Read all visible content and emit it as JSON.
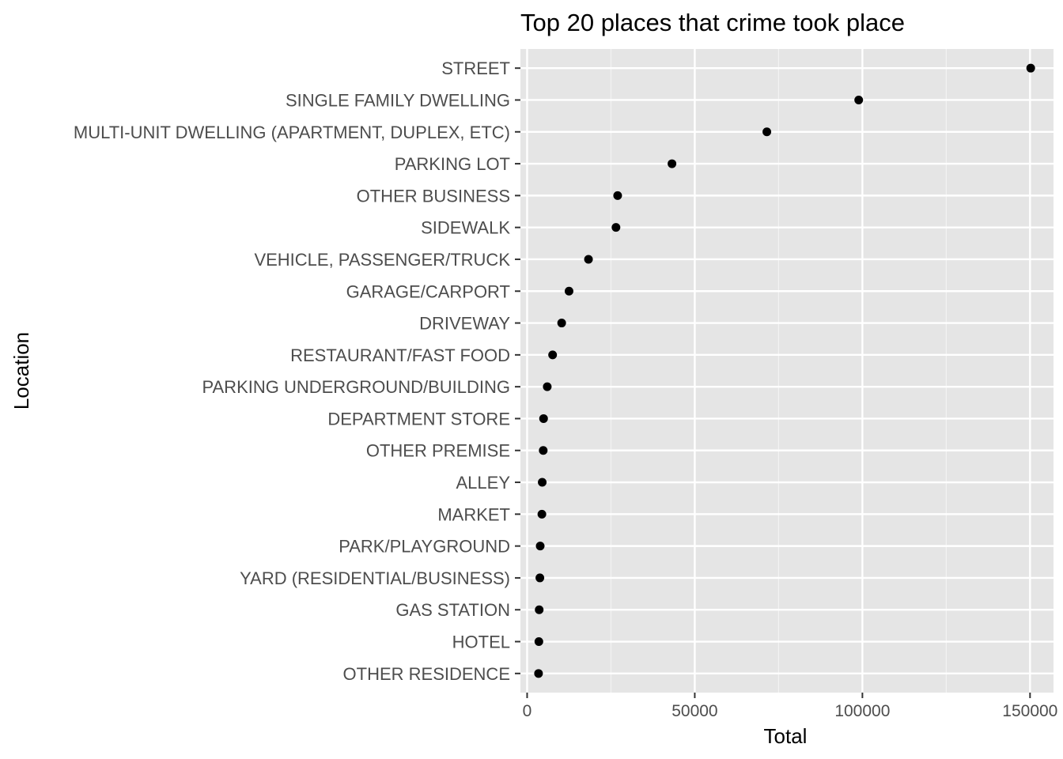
{
  "chart_data": {
    "type": "scatter",
    "title": "Top 20 places that crime took place",
    "xlabel": "Total",
    "ylabel": "Location",
    "xlim": [
      -2000,
      157000
    ],
    "xticks": [
      0,
      50000,
      100000,
      150000
    ],
    "xtick_labels": [
      "0",
      "50000",
      "100000",
      "150000"
    ],
    "grid": true,
    "categories": [
      "STREET",
      "SINGLE FAMILY DWELLING",
      "MULTI-UNIT DWELLING (APARTMENT, DUPLEX, ETC)",
      "PARKING LOT",
      "OTHER BUSINESS",
      "SIDEWALK",
      "VEHICLE, PASSENGER/TRUCK",
      "GARAGE/CARPORT",
      "DRIVEWAY",
      "RESTAURANT/FAST FOOD",
      "PARKING UNDERGROUND/BUILDING",
      "DEPARTMENT STORE",
      "OTHER PREMISE",
      "ALLEY",
      "MARKET",
      "PARK/PLAYGROUND",
      "YARD (RESIDENTIAL/BUSINESS)",
      "GAS STATION",
      "HOTEL",
      "OTHER RESIDENCE"
    ],
    "values": [
      150200,
      98900,
      71500,
      43200,
      27000,
      26500,
      18300,
      12500,
      10300,
      7600,
      6000,
      4900,
      4800,
      4500,
      4400,
      3900,
      3800,
      3600,
      3500,
      3400
    ]
  },
  "colors": {
    "panel_background": "#e5e5e5",
    "grid_major": "#ffffff",
    "grid_minor": "#f2f2f2",
    "point": "#000000",
    "tick_label": "#4d4d4d",
    "tick_mark": "#333333"
  }
}
